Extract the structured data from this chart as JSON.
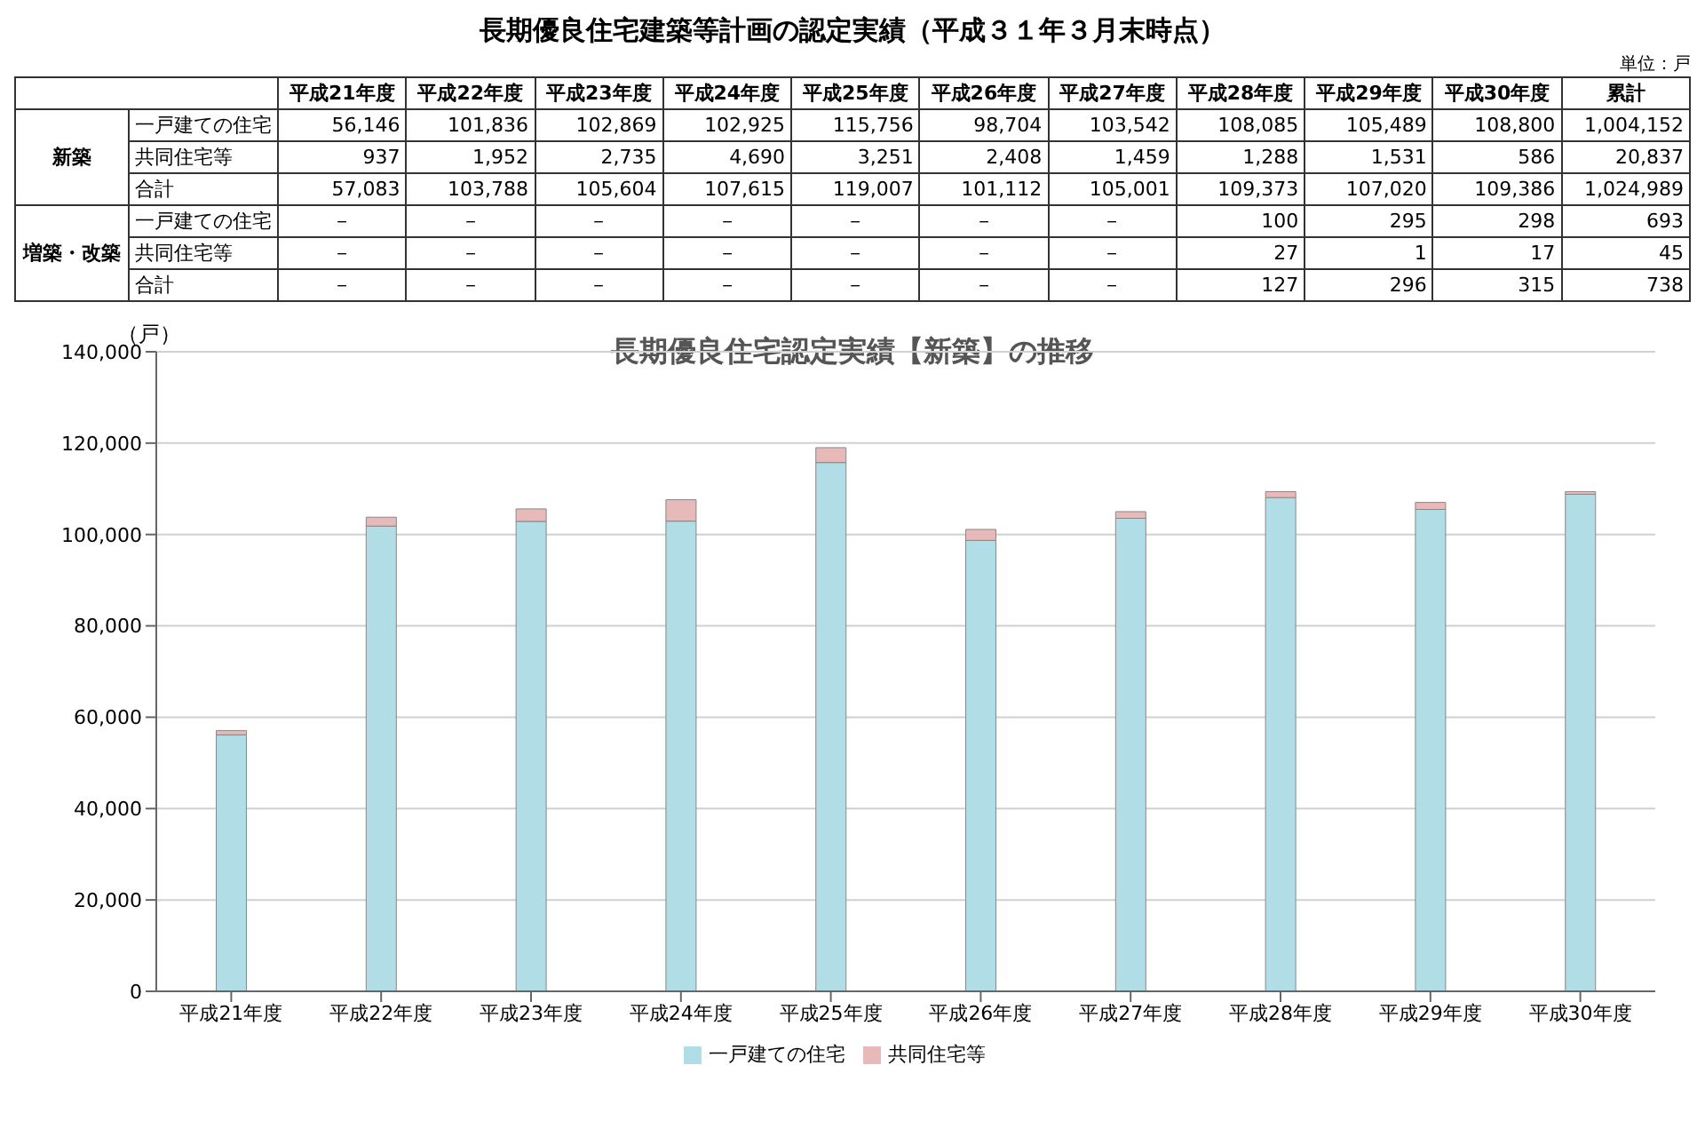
{
  "chart_data": [
    {
      "type": "heatmap",
      "title": "長期優良住宅建築等計画の認定実績（平成３１年３月末時点）",
      "annotations": [
        "新築",
        "増築・改築",
        "単位：戸"
      ],
      "categories": [
        "平成21年度",
        "平成22年度",
        "平成23年度",
        "平成24年度",
        "平成25年度",
        "平成26年度",
        "平成27年度",
        "平成28年度",
        "平成29年度",
        "平成30年度",
        "累計"
      ],
      "y_categories": [
        "一戸建ての住宅",
        "共同住宅等",
        "合計",
        "一戸建ての住宅",
        "共同住宅等",
        "合計"
      ],
      "cells": [
        [
          56146,
          101836,
          102869,
          102925,
          115756,
          98704,
          103542,
          108085,
          105489,
          108800,
          1004152
        ],
        [
          937,
          1952,
          2735,
          4690,
          3251,
          2408,
          1459,
          1288,
          1531,
          586,
          20837
        ],
        [
          57083,
          103788,
          105604,
          107615,
          119007,
          101112,
          105001,
          109373,
          107020,
          109386,
          1024989
        ],
        [
          null,
          null,
          null,
          null,
          null,
          null,
          null,
          100,
          295,
          298,
          693
        ],
        [
          null,
          null,
          null,
          null,
          null,
          null,
          null,
          27,
          1,
          17,
          45
        ],
        [
          null,
          null,
          null,
          null,
          null,
          null,
          null,
          127,
          296,
          315,
          738
        ]
      ],
      "cell_labels": [
        [
          "56,146",
          "101,836",
          "102,869",
          "102,925",
          "115,756",
          "98,704",
          "103,542",
          "108,085",
          "105,489",
          "108,800",
          "1,004,152"
        ],
        [
          "937",
          "1,952",
          "2,735",
          "4,690",
          "3,251",
          "2,408",
          "1,459",
          "1,288",
          "1,531",
          "586",
          "20,837"
        ],
        [
          "57,083",
          "103,788",
          "105,604",
          "107,615",
          "119,007",
          "101,112",
          "105,001",
          "109,373",
          "107,020",
          "109,386",
          "1,024,989"
        ],
        [
          "－",
          "－",
          "－",
          "－",
          "－",
          "－",
          "－",
          "100",
          "295",
          "298",
          "693"
        ],
        [
          "－",
          "－",
          "－",
          "－",
          "－",
          "－",
          "－",
          "27",
          "1",
          "17",
          "45"
        ],
        [
          "－",
          "－",
          "－",
          "－",
          "－",
          "－",
          "－",
          "127",
          "296",
          "315",
          "738"
        ]
      ]
    },
    {
      "type": "bar",
      "stacked": true,
      "title": "長期優良住宅認定実績【新築】の推移",
      "ylabel": "（戸）",
      "categories": [
        "平成21年度",
        "平成22年度",
        "平成23年度",
        "平成24年度",
        "平成25年度",
        "平成26年度",
        "平成27年度",
        "平成28年度",
        "平成29年度",
        "平成30年度"
      ],
      "series": [
        {
          "name": "一戸建ての住宅",
          "color": "#b0dde6",
          "values": [
            56146,
            101836,
            102869,
            102925,
            115756,
            98704,
            103542,
            108085,
            105489,
            108800
          ]
        },
        {
          "name": "共同住宅等",
          "color": "#e8b9b9",
          "values": [
            937,
            1952,
            2735,
            4690,
            3251,
            2408,
            1459,
            1288,
            1531,
            586
          ]
        }
      ],
      "ylim": [
        0,
        140000
      ],
      "yticks": [
        0,
        {
          "value": 20000,
          "label": "20,000"
        },
        {
          "value": 40000,
          "label": "40,000"
        },
        {
          "value": 60000,
          "label": "60,000"
        },
        {
          "value": 80000,
          "label": "80,000"
        },
        {
          "value": 100000,
          "label": "100,000"
        },
        {
          "value": 120000,
          "label": "120,000"
        },
        {
          "value": 140000,
          "label": "140,000"
        }
      ],
      "grid": "y",
      "legend": "bottom"
    }
  ]
}
